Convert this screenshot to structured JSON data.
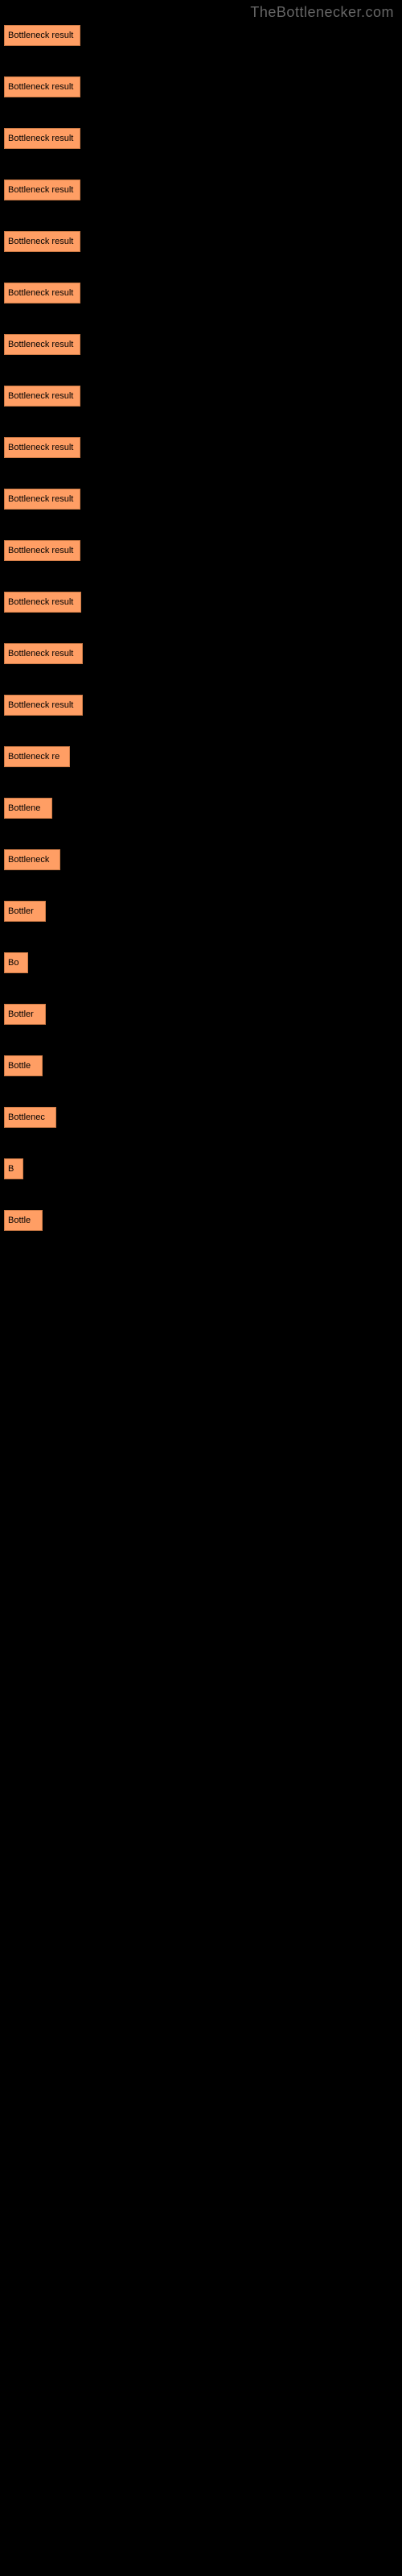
{
  "watermark": "TheBottlenecker.com",
  "chart": {
    "type": "bar",
    "bar_color": "#ff9e64",
    "bar_border_color": "#cc7a45",
    "background_color": "#000000",
    "text_color": "#000000",
    "font_size": 11,
    "max_width": 85,
    "bars": [
      {
        "label": "Bottleneck result",
        "width": 85
      },
      {
        "label": "Bottleneck result",
        "width": 85
      },
      {
        "label": "Bottleneck result",
        "width": 85
      },
      {
        "label": "Bottleneck result",
        "width": 85
      },
      {
        "label": "Bottleneck result",
        "width": 85
      },
      {
        "label": "Bottleneck result",
        "width": 85
      },
      {
        "label": "Bottleneck result",
        "width": 85
      },
      {
        "label": "Bottleneck result",
        "width": 85
      },
      {
        "label": "Bottleneck result",
        "width": 85
      },
      {
        "label": "Bottleneck result",
        "width": 85
      },
      {
        "label": "Bottleneck result",
        "width": 85
      },
      {
        "label": "Bottleneck result",
        "width": 86
      },
      {
        "label": "Bottleneck result",
        "width": 88
      },
      {
        "label": "Bottleneck result",
        "width": 88
      },
      {
        "label": "Bottleneck re",
        "width": 72
      },
      {
        "label": "Bottlene",
        "width": 50
      },
      {
        "label": "Bottleneck",
        "width": 60
      },
      {
        "label": "Bottler",
        "width": 42
      },
      {
        "label": "Bo",
        "width": 20
      },
      {
        "label": "Bottler",
        "width": 42
      },
      {
        "label": "Bottle",
        "width": 38
      },
      {
        "label": "Bottlenec",
        "width": 55
      },
      {
        "label": "B",
        "width": 14
      },
      {
        "label": "Bottle",
        "width": 38
      }
    ]
  }
}
